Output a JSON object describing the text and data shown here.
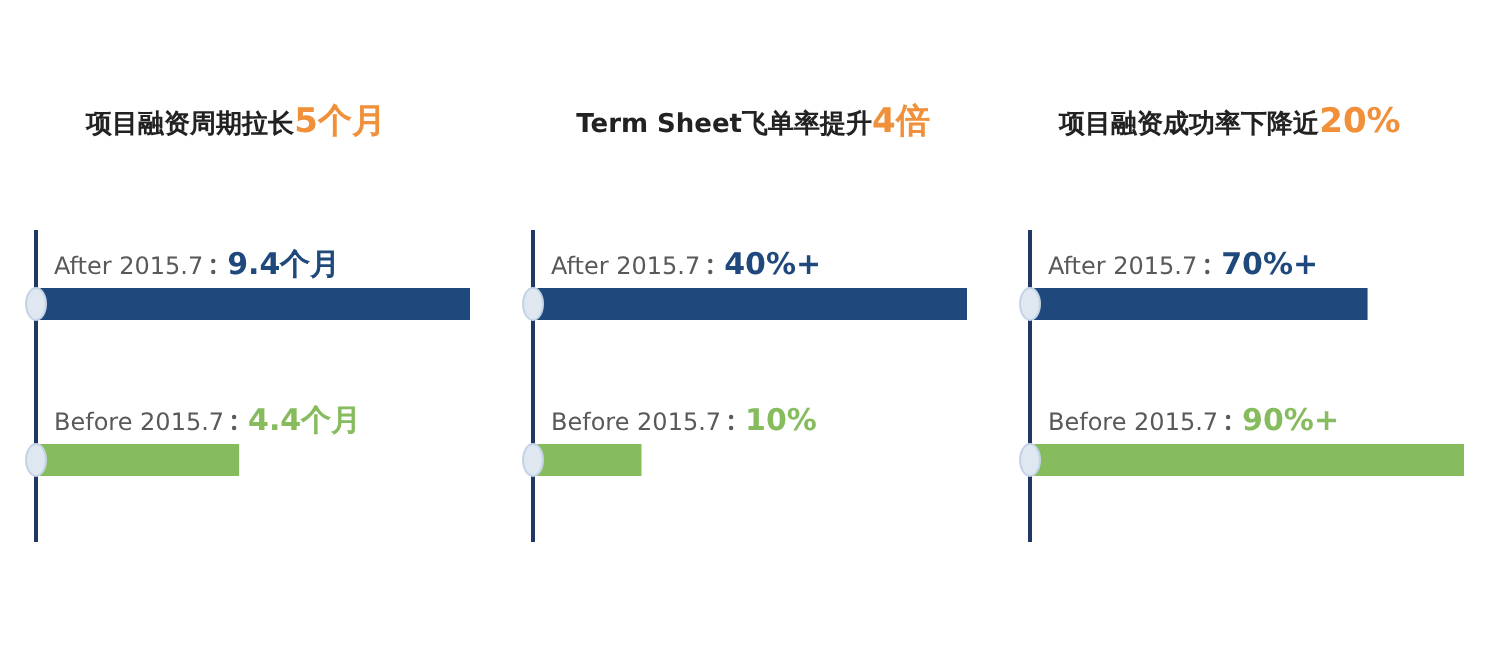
{
  "chart_data": [
    {
      "type": "bar",
      "orientation": "horizontal",
      "title": "项目融资周期拉长",
      "subtitle": "5个月",
      "categories": [
        "After  2015.7",
        "Before 2015.7"
      ],
      "values": [
        9.4,
        4.4
      ],
      "colors": [
        "#1f497d",
        "#86bc5e"
      ],
      "value_labels": [
        "9.4个月",
        "4.4个月"
      ]
    },
    {
      "type": "bar",
      "orientation": "horizontal",
      "title": "Term Sheet飞单率提升",
      "subtitle": "4倍",
      "categories": [
        "After   2015.7",
        "Before 2015.7"
      ],
      "values": [
        40,
        10
      ],
      "colors": [
        "#1f497d",
        "#86bc5e"
      ],
      "value_labels": [
        "40%+",
        "10%"
      ]
    },
    {
      "type": "bar",
      "orientation": "horizontal",
      "title": "项目融资成功率下降近",
      "subtitle": "20%",
      "categories": [
        "After  2015.7",
        "Before 2015.7"
      ],
      "values": [
        70,
        90
      ],
      "colors": [
        "#1f497d",
        "#86bc5e"
      ],
      "value_labels": [
        "70%+",
        "90%+"
      ]
    }
  ]
}
